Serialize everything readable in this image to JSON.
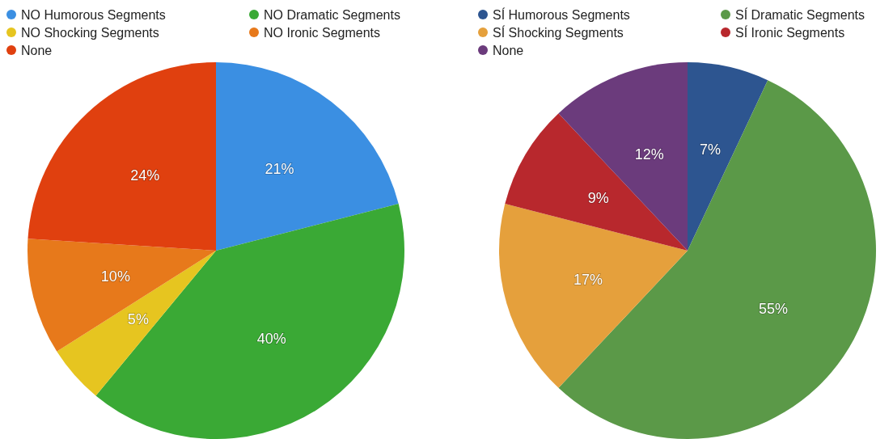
{
  "chart_data": [
    {
      "type": "pie",
      "categories": [
        "NO Humorous Segments",
        "NO Dramatic Segments",
        "NO Shocking Segments",
        "NO Ironic Segments",
        "None"
      ],
      "values": [
        21,
        40,
        5,
        10,
        24
      ],
      "colors": [
        "#3b8fe2",
        "#3aa935",
        "#e6c520",
        "#e7791b",
        "#e0400f"
      ],
      "value_labels": [
        "21%",
        "40%",
        "5%",
        "10%",
        "24%"
      ],
      "legend": "top"
    },
    {
      "type": "pie",
      "categories": [
        "SÍ Humorous Segments",
        "SÍ Dramatic Segments",
        "SÍ Shocking Segments",
        "SÍ Ironic Segments",
        "None"
      ],
      "values": [
        7,
        55,
        17,
        9,
        12
      ],
      "colors": [
        "#2d5590",
        "#5b9948",
        "#e5a03c",
        "#b8282d",
        "#6b3b7c"
      ],
      "value_labels": [
        "7%",
        "55%",
        "17%",
        "9%",
        "12%"
      ],
      "legend": "top"
    }
  ]
}
